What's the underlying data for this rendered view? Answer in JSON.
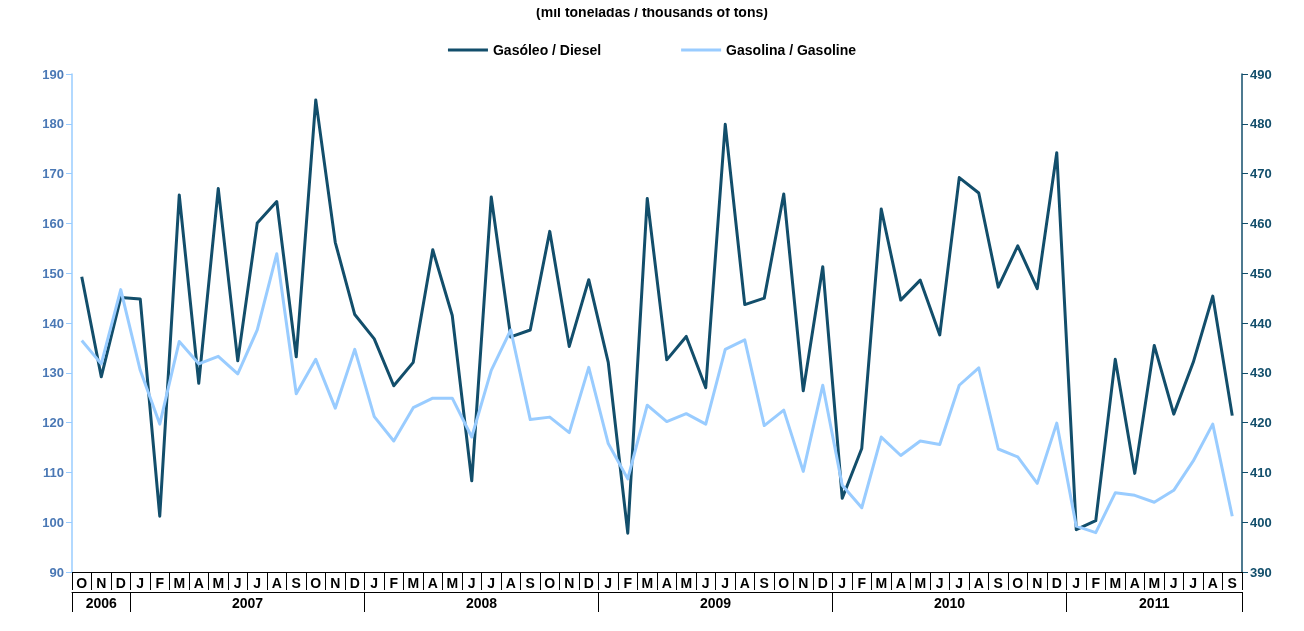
{
  "chart_data": {
    "type": "line",
    "subtitle": "(mil toneladas / thousands of tons)",
    "categories": [
      "O",
      "N",
      "D",
      "J",
      "F",
      "M",
      "A",
      "M",
      "J",
      "J",
      "A",
      "S",
      "O",
      "N",
      "D",
      "J",
      "F",
      "M",
      "A",
      "M",
      "J",
      "J",
      "A",
      "S",
      "O",
      "N",
      "D",
      "J",
      "F",
      "M",
      "A",
      "M",
      "J",
      "J",
      "A",
      "S",
      "O",
      "N",
      "D",
      "J",
      "F",
      "M",
      "A",
      "M",
      "J",
      "J",
      "A",
      "S",
      "O",
      "N",
      "D",
      "J",
      "F",
      "M",
      "A",
      "M",
      "J",
      "J",
      "A",
      "S"
    ],
    "annotations": [
      "2006",
      "2007",
      "2008",
      "2009",
      "2010",
      "2011"
    ],
    "series": [
      {
        "name": "Gasóleo / Diesel",
        "color": "#124e6b",
        "axis": "y2",
        "values": [
          449.3,
          429.2,
          445.1,
          444.8,
          401.2,
          465.7,
          427.9,
          467.0,
          432.4,
          460.1,
          464.4,
          433.2,
          484.8,
          456.2,
          441.7,
          436.8,
          427.4,
          432.1,
          454.7,
          441.5,
          408.3,
          465.3,
          437.2,
          438.6,
          458.4,
          435.3,
          448.7,
          432.1,
          397.8,
          465.0,
          432.6,
          437.3,
          427.0,
          479.9,
          443.7,
          445.0,
          465.9,
          426.4,
          451.3,
          404.8,
          414.8,
          462.9,
          444.6,
          448.6,
          437.6,
          469.2,
          466.1,
          447.2,
          455.5,
          446.9,
          474.2,
          398.5,
          400.3,
          432.7,
          409.8,
          435.5,
          421.7,
          432.1,
          445.4,
          421.4
        ]
      },
      {
        "name": "Gasolina / Gasoline",
        "color": "#99ccff",
        "values": [
          136.5,
          131.8,
          146.7,
          130.5,
          119.7,
          136.3,
          131.8,
          133.3,
          129.8,
          138.6,
          153.9,
          125.8,
          132.7,
          122.9,
          134.7,
          121.2,
          116.3,
          123.0,
          124.9,
          124.9,
          117.1,
          130.5,
          138.6,
          120.6,
          121.1,
          118.0,
          131.1,
          115.8,
          108.7,
          123.5,
          120.2,
          121.8,
          119.7,
          134.7,
          136.6,
          119.4,
          122.5,
          110.2,
          127.5,
          107.4,
          102.9,
          117.1,
          113.4,
          116.3,
          115.6,
          127.5,
          131.0,
          114.7,
          113.1,
          107.8,
          119.9,
          99.2,
          97.9,
          105.9,
          105.4,
          104.0,
          106.4,
          112.3,
          119.7,
          101.2
        ]
      }
    ],
    "ylim": [
      90,
      190
    ],
    "yticks": [
      90,
      100,
      110,
      120,
      130,
      140,
      150,
      160,
      170,
      180,
      190
    ],
    "y2lim": [
      390,
      490
    ],
    "y2ticks": [
      390,
      400,
      410,
      420,
      430,
      440,
      450,
      460,
      470,
      480,
      490
    ],
    "legend": "top",
    "grid": false,
    "marker": "none",
    "line_style": "solid"
  }
}
